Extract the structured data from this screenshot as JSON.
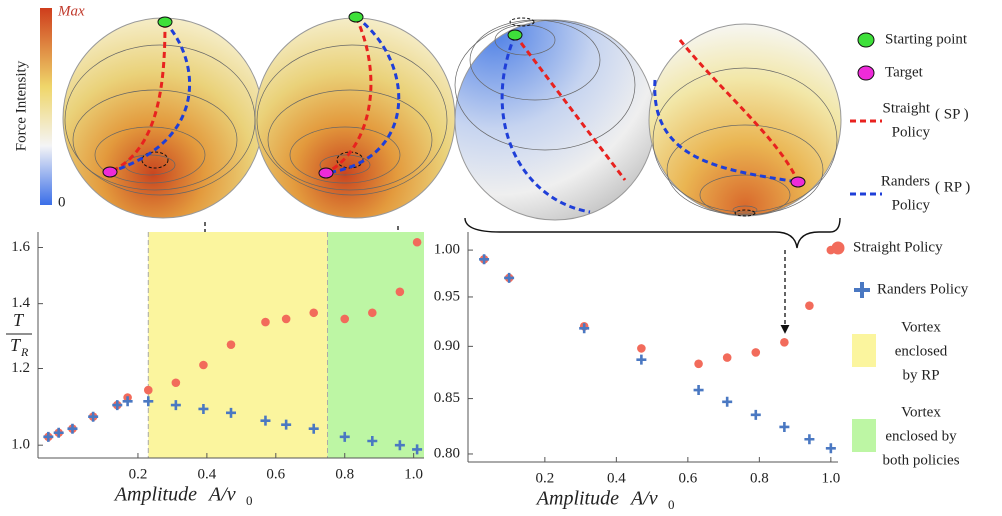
{
  "figure": {
    "colorbar": {
      "title": "Force Intensity",
      "max": "Max",
      "min": "0"
    },
    "sphere_legend": [
      {
        "marker": "circle",
        "color": "#3ee03a",
        "lines": [
          "Starting point"
        ]
      },
      {
        "marker": "circle",
        "color": "#ee2bd9",
        "lines": [
          "Target"
        ]
      },
      {
        "marker": "dash",
        "color": "#e8221f",
        "lines": [
          "Straight",
          "Policy"
        ],
        "abbr": "( SP )"
      },
      {
        "marker": "dash",
        "color": "#1f3fd8",
        "lines": [
          "Randers",
          "Policy"
        ],
        "abbr": "( RP )"
      }
    ]
  },
  "chart_data": [
    {
      "type": "scatter",
      "x_label": {
        "text": "Amplitude",
        "symbol": "A/v",
        "subscript": "0"
      },
      "y_label": {
        "numerator": "T",
        "denominator": "T",
        "subscript": "R"
      },
      "x": [
        -0.06,
        -0.03,
        0.01,
        0.07,
        0.14,
        0.17,
        0.23,
        0.31,
        0.39,
        0.47,
        0.57,
        0.63,
        0.71,
        0.8,
        0.88,
        0.96,
        1.01
      ],
      "series": [
        {
          "color": "#f26b5b",
          "marker": "circle",
          "values": [
            1.02,
            1.03,
            1.04,
            1.07,
            1.1,
            1.12,
            1.14,
            1.16,
            1.21,
            1.27,
            1.34,
            1.35,
            1.37,
            1.35,
            1.37,
            1.44,
            1.62
          ]
        },
        {
          "color": "#4a78c2",
          "marker": "plus",
          "values": [
            1.02,
            1.03,
            1.04,
            1.07,
            1.1,
            1.11,
            1.11,
            1.1,
            1.09,
            1.08,
            1.06,
            1.05,
            1.04,
            1.02,
            1.01,
            1.0,
            0.99
          ]
        }
      ],
      "regions": [
        {
          "color": "#fbf59e",
          "x": [
            0.23,
            0.75
          ],
          "lines": [
            "Vortex",
            "enclosed",
            "by RP"
          ]
        },
        {
          "color": "#bdf6a4",
          "x": [
            0.75,
            1.03
          ],
          "lines": [
            "Vortex",
            "enclosed by",
            "both policies"
          ]
        }
      ],
      "xlim": [
        -0.09,
        1.03
      ],
      "ylim": [
        0.97,
        1.66
      ],
      "ylog": true,
      "xticks": [
        0.2,
        0.4,
        0.6,
        0.8,
        {
          "value": 1,
          "label": "1.0"
        }
      ],
      "yticks": [
        {
          "value": 1,
          "label": "1.0"
        },
        1.2,
        1.4,
        1.6
      ]
    },
    {
      "type": "scatter",
      "x_label": {
        "text": "Amplitude",
        "symbol": "A/v",
        "subscript": "0"
      },
      "x": [
        0.03,
        0.1,
        0.31,
        0.47,
        0.63,
        0.71,
        0.79,
        0.87,
        0.94,
        1.0
      ],
      "series": [
        {
          "name": "Straight Policy",
          "color": "#f26b5b",
          "marker": "circle",
          "values": [
            0.99,
            0.97,
            0.92,
            0.898,
            0.883,
            0.889,
            0.894,
            0.904,
            0.941,
            1.0
          ]
        },
        {
          "name": "Randers Policy",
          "color": "#4a78c2",
          "marker": "plus",
          "values": [
            0.99,
            0.97,
            0.918,
            0.887,
            0.858,
            0.847,
            0.835,
            0.824,
            0.813,
            0.805
          ]
        }
      ],
      "xlim": [
        -0.015,
        1.02
      ],
      "ylim": [
        0.793,
        1.02
      ],
      "ylog": true,
      "xticks": [
        0.2,
        0.4,
        0.6,
        0.8,
        {
          "value": 1,
          "label": "1.0"
        }
      ],
      "yticks": [
        {
          "value": 0.8,
          "label": "0.80"
        },
        0.85,
        {
          "value": 0.9,
          "label": "0.90"
        },
        0.95,
        {
          "value": 1,
          "label": "1.00"
        }
      ]
    }
  ]
}
